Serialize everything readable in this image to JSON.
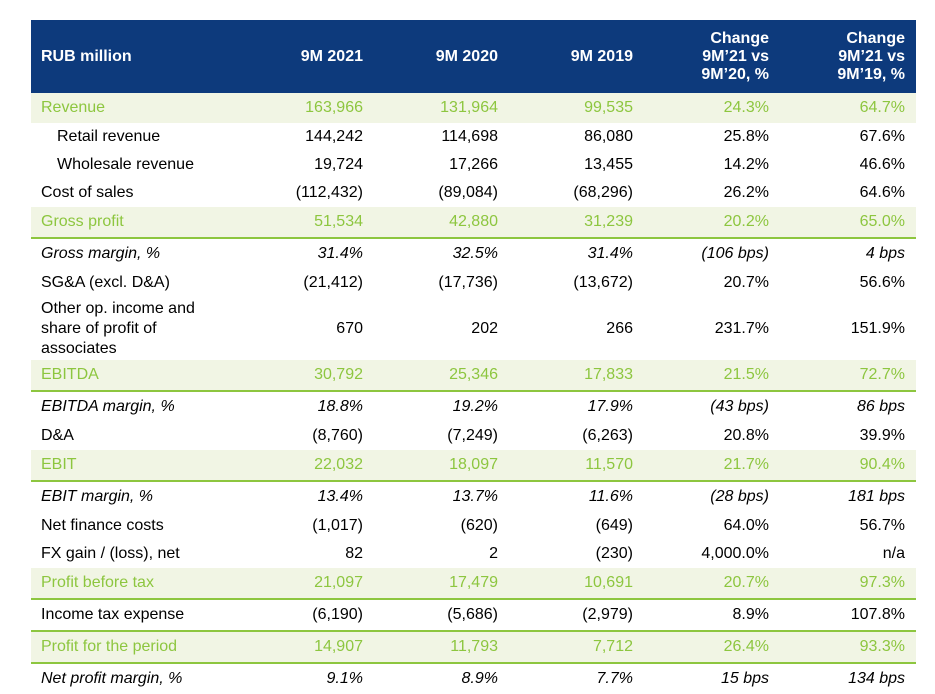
{
  "header": {
    "label": "RUB million",
    "c1": "9M 2021",
    "c2": "9M 2020",
    "c3": "9M 2019",
    "c4": [
      "Change",
      "9M’21 vs",
      "9M’20, %"
    ],
    "c5": [
      "Change",
      "9M’21 vs",
      "9M’19, %"
    ]
  },
  "rows": [
    {
      "label": "Revenue",
      "v": [
        "163,966",
        "131,964",
        "99,535",
        "24.3%",
        "64.7%"
      ]
    },
    {
      "label": "Retail revenue",
      "v": [
        "144,242",
        "114,698",
        "86,080",
        "25.8%",
        "67.6%"
      ]
    },
    {
      "label": "Wholesale revenue",
      "v": [
        "19,724",
        "17,266",
        "13,455",
        "14.2%",
        "46.6%"
      ]
    },
    {
      "label": "Cost of sales",
      "v": [
        "(112,432)",
        "(89,084)",
        "(68,296)",
        "26.2%",
        "64.6%"
      ]
    },
    {
      "label": "Gross profit",
      "v": [
        "51,534",
        "42,880",
        "31,239",
        "20.2%",
        "65.0%"
      ]
    },
    {
      "label": "Gross margin, %",
      "v": [
        "31.4%",
        "32.5%",
        "31.4%",
        "(106 bps)",
        "4 bps"
      ]
    },
    {
      "label": "SG&A (excl. D&A)",
      "v": [
        "(21,412)",
        "(17,736)",
        "(13,672)",
        "20.7%",
        "56.6%"
      ]
    },
    {
      "label": "Other op. income and share of profit of associates",
      "v": [
        "670",
        "202",
        "266",
        "231.7%",
        "151.9%"
      ]
    },
    {
      "label": "EBITDA",
      "v": [
        "30,792",
        "25,346",
        "17,833",
        "21.5%",
        "72.7%"
      ]
    },
    {
      "label": "EBITDA margin, %",
      "v": [
        "18.8%",
        "19.2%",
        "17.9%",
        "(43 bps)",
        "86 bps"
      ]
    },
    {
      "label": "D&A",
      "v": [
        "(8,760)",
        "(7,249)",
        "(6,263)",
        "20.8%",
        "39.9%"
      ]
    },
    {
      "label": "EBIT",
      "v": [
        "22,032",
        "18,097",
        "11,570",
        "21.7%",
        "90.4%"
      ]
    },
    {
      "label": "EBIT margin, %",
      "v": [
        "13.4%",
        "13.7%",
        "11.6%",
        "(28 bps)",
        "181 bps"
      ]
    },
    {
      "label": "Net finance costs",
      "v": [
        "(1,017)",
        "(620)",
        "(649)",
        "64.0%",
        "56.7%"
      ]
    },
    {
      "label": "FX gain / (loss), net",
      "v": [
        "82",
        "2",
        "(230)",
        "4,000.0%",
        "n/a"
      ]
    },
    {
      "label": "Profit before tax",
      "v": [
        "21,097",
        "17,479",
        "10,691",
        "20.7%",
        "97.3%"
      ]
    },
    {
      "label": "Income tax expense",
      "v": [
        "(6,190)",
        "(5,686)",
        "(2,979)",
        "8.9%",
        "107.8%"
      ]
    },
    {
      "label": "Profit for the period",
      "v": [
        "14,907",
        "11,793",
        "7,712",
        "26.4%",
        "93.3%"
      ]
    },
    {
      "label": "Net profit margin, %",
      "v": [
        "9.1%",
        "8.9%",
        "7.7%",
        "15 bps",
        "134 bps"
      ]
    }
  ]
}
